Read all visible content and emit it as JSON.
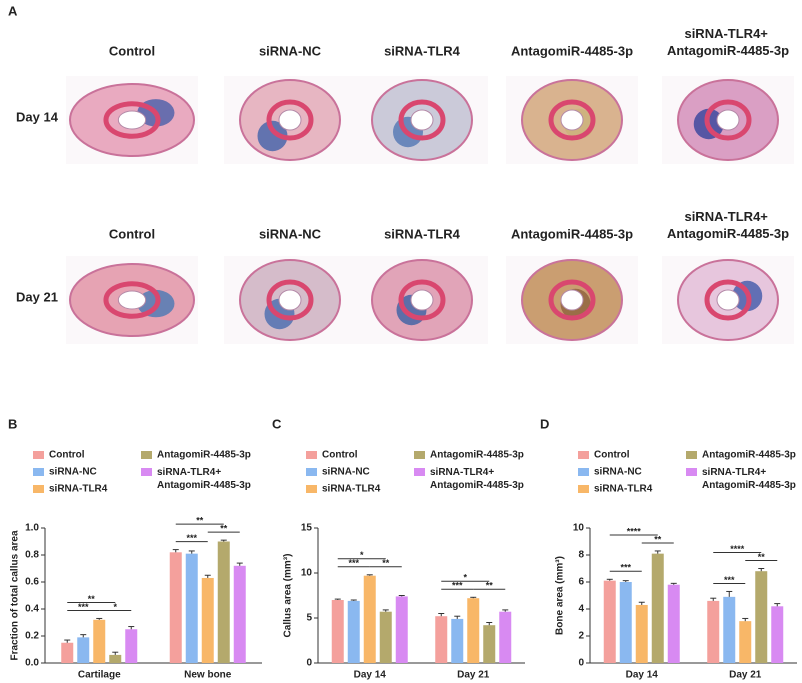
{
  "panel_a": {
    "label": "A",
    "rows": [
      {
        "label": "Day 14",
        "columns": [
          "Control",
          "siRNA-NC",
          "siRNA-TLR4",
          "AntagomiR-4485-3p",
          "siRNA-TLR4+ AntagomiR-4485-3p"
        ]
      },
      {
        "label": "Day 21",
        "columns": [
          "Control",
          "siRNA-NC",
          "siRNA-TLR4",
          "AntagomiR-4485-3p",
          "siRNA-TLR4+ AntagomiR-4485-3p"
        ]
      }
    ]
  },
  "chart_data": [
    {
      "type": "bar",
      "panel": "B",
      "y_label": "Fraction of total callus area",
      "categories": [
        "Cartilage",
        "New bone"
      ],
      "series": [
        {
          "name": "Control",
          "color": "#f4a09c",
          "values": [
            0.15,
            0.82
          ],
          "errors": [
            0.02,
            0.02
          ]
        },
        {
          "name": "siRNA-NC",
          "color": "#8ab8f0",
          "values": [
            0.19,
            0.81
          ],
          "errors": [
            0.02,
            0.02
          ]
        },
        {
          "name": "siRNA-TLR4",
          "color": "#f8b768",
          "values": [
            0.32,
            0.63
          ],
          "errors": [
            0.01,
            0.02
          ]
        },
        {
          "name": "AntagomiR-4485-3p",
          "color": "#b4a96c",
          "values": [
            0.06,
            0.9
          ],
          "errors": [
            0.02,
            0.01
          ]
        },
        {
          "name": "siRNA-TLR4+ AntagomiR-4485-3p",
          "color": "#d88af2",
          "values": [
            0.25,
            0.72
          ],
          "errors": [
            0.02,
            0.02
          ]
        }
      ],
      "annotations": [
        [
          "***",
          "**",
          "*"
        ],
        [
          "***",
          "**",
          "**"
        ]
      ],
      "ylim": [
        0,
        1.0
      ],
      "yticks": [
        {
          "value": 0,
          "label": "0.0"
        },
        0.2,
        0.4,
        0.6,
        0.8,
        {
          "value": 1.0,
          "label": "1.0"
        }
      ]
    },
    {
      "type": "bar",
      "panel": "C",
      "y_label": "Callus area (mm³)",
      "categories": [
        "Day 14",
        "Day 21"
      ],
      "series": [
        {
          "name": "Control",
          "color": "#f4a09c",
          "values": [
            7.0,
            5.2
          ],
          "errors": [
            0.1,
            0.3
          ]
        },
        {
          "name": "siRNA-NC",
          "color": "#8ab8f0",
          "values": [
            6.9,
            4.9
          ],
          "errors": [
            0.1,
            0.3
          ]
        },
        {
          "name": "siRNA-TLR4",
          "color": "#f8b768",
          "values": [
            9.7,
            7.2
          ],
          "errors": [
            0.1,
            0.1
          ]
        },
        {
          "name": "AntagomiR-4485-3p",
          "color": "#b4a96c",
          "values": [
            5.7,
            4.2
          ],
          "errors": [
            0.2,
            0.3
          ]
        },
        {
          "name": "siRNA-TLR4+ AntagomiR-4485-3p",
          "color": "#d88af2",
          "values": [
            7.4,
            5.7
          ],
          "errors": [
            0.1,
            0.2
          ]
        }
      ],
      "annotations": [
        [
          "***",
          "*",
          "**"
        ],
        [
          "***",
          "*",
          "**"
        ]
      ],
      "ylim": [
        0,
        15
      ],
      "yticks": [
        0,
        5,
        10,
        15
      ]
    },
    {
      "type": "bar",
      "panel": "D",
      "y_label": "Bone area (mm³)",
      "categories": [
        "Day 14",
        "Day 21"
      ],
      "series": [
        {
          "name": "Control",
          "color": "#f4a09c",
          "values": [
            6.1,
            4.6
          ],
          "errors": [
            0.1,
            0.2
          ]
        },
        {
          "name": "siRNA-NC",
          "color": "#8ab8f0",
          "values": [
            6.0,
            4.9
          ],
          "errors": [
            0.1,
            0.4
          ]
        },
        {
          "name": "siRNA-TLR4",
          "color": "#f8b768",
          "values": [
            4.3,
            3.1
          ],
          "errors": [
            0.2,
            0.2
          ]
        },
        {
          "name": "AntagomiR-4485-3p",
          "color": "#b4a96c",
          "values": [
            8.1,
            6.8
          ],
          "errors": [
            0.2,
            0.2
          ]
        },
        {
          "name": "siRNA-TLR4+ AntagomiR-4485-3p",
          "color": "#d88af2",
          "values": [
            5.8,
            4.2
          ],
          "errors": [
            0.1,
            0.2
          ]
        }
      ],
      "annotations": [
        [
          "***",
          "****",
          "**"
        ],
        [
          "***",
          "****",
          "**"
        ]
      ],
      "ylim": [
        0,
        10
      ],
      "yticks": [
        0,
        2,
        4,
        6,
        8,
        10
      ]
    }
  ]
}
